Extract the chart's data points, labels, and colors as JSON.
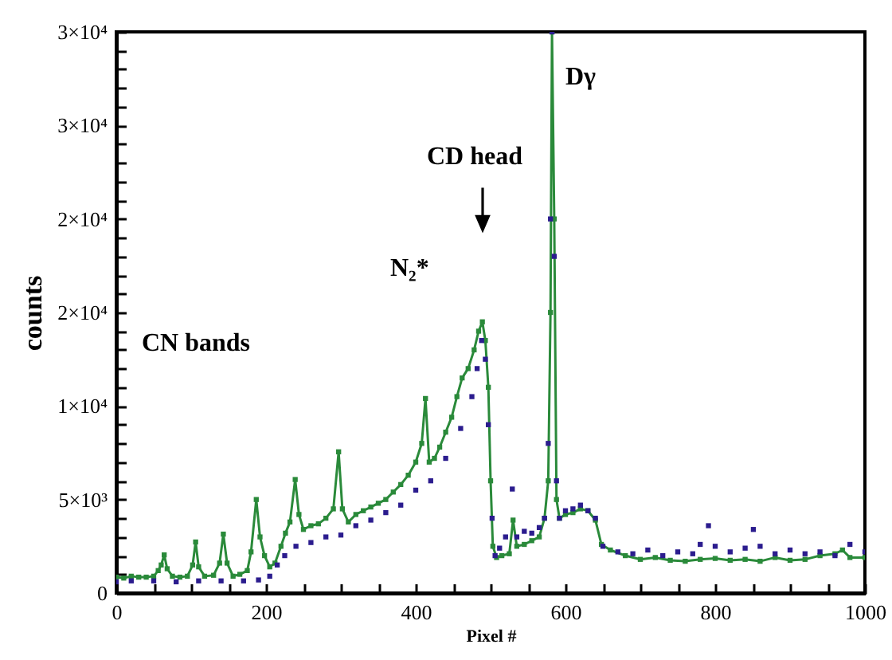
{
  "chart_data": {
    "type": "line",
    "xlabel": "Pixel #",
    "ylabel": "counts",
    "marker": "square",
    "xlim": [
      0,
      1000
    ],
    "ylim": [
      0,
      30000
    ],
    "xticks": [
      0,
      {
        "value": 50,
        "label": null
      },
      200,
      {
        "value": 100,
        "label": null
      },
      {
        "value": 150,
        "label": null
      },
      {
        "value": 250,
        "label": null
      },
      {
        "value": 300,
        "label": null
      },
      {
        "value": 350,
        "label": null
      },
      400,
      {
        "value": 450,
        "label": null
      },
      {
        "value": 500,
        "label": null
      },
      {
        "value": 550,
        "label": null
      },
      600,
      {
        "value": 650,
        "label": null
      },
      {
        "value": 700,
        "label": null
      },
      {
        "value": 750,
        "label": null
      },
      800,
      {
        "value": 850,
        "label": null
      },
      {
        "value": 900,
        "label": null
      },
      {
        "value": 950,
        "label": null
      },
      1000
    ],
    "yticks": [
      0,
      {
        "value": 1000,
        "label": null
      },
      {
        "value": 2000,
        "label": null
      },
      {
        "value": 3000,
        "label": null
      },
      {
        "value": 4000,
        "label": null
      },
      {
        "value": 5000,
        "label": "5×10³"
      },
      {
        "value": 6000,
        "label": null
      },
      {
        "value": 7000,
        "label": null
      },
      {
        "value": 8000,
        "label": null
      },
      {
        "value": 9000,
        "label": null
      },
      {
        "value": 10000,
        "label": "1×10⁴"
      },
      {
        "value": 11000,
        "label": null
      },
      {
        "value": 12000,
        "label": null
      },
      {
        "value": 13000,
        "label": null
      },
      {
        "value": 14000,
        "label": null
      },
      {
        "value": 15000,
        "label": "2×10⁴"
      },
      {
        "value": 16000,
        "label": null
      },
      {
        "value": 17000,
        "label": null
      },
      {
        "value": 18000,
        "label": null
      },
      {
        "value": 19000,
        "label": null
      },
      {
        "value": 20000,
        "label": "2×10⁴"
      },
      {
        "value": 21000,
        "label": null
      },
      {
        "value": 22000,
        "label": null
      },
      {
        "value": 23000,
        "label": null
      },
      {
        "value": 24000,
        "label": null
      },
      {
        "value": 25000,
        "label": "3×10⁴"
      },
      {
        "value": 26000,
        "label": null
      },
      {
        "value": 27000,
        "label": null
      },
      {
        "value": 28000,
        "label": null
      },
      {
        "value": 29000,
        "label": null
      },
      {
        "value": 30000,
        "label": "3×10⁴"
      }
    ],
    "annotations": [
      "CN bands",
      "N₂*",
      "CD head",
      "Dγ"
    ],
    "series": [
      {
        "color": "#2a8a3a",
        "x": [
          0,
          10,
          20,
          30,
          40,
          50,
          56,
          60,
          64,
          68,
          75,
          85,
          95,
          102,
          106,
          110,
          118,
          130,
          138,
          143,
          148,
          156,
          165,
          175,
          180,
          187,
          192,
          198,
          205,
          212,
          220,
          226,
          232,
          239,
          244,
          250,
          260,
          270,
          280,
          290,
          297,
          302,
          310,
          320,
          330,
          340,
          350,
          360,
          370,
          380,
          390,
          400,
          408,
          413,
          418,
          425,
          432,
          440,
          448,
          455,
          462,
          470,
          478,
          484,
          489,
          493,
          497,
          500,
          503,
          508,
          515,
          525,
          530,
          535,
          545,
          555,
          565,
          572,
          577,
          580,
          582,
          585,
          588,
          592,
          600,
          610,
          620,
          630,
          640,
          648,
          660,
          680,
          700,
          720,
          740,
          760,
          780,
          800,
          820,
          840,
          860,
          880,
          900,
          920,
          940,
          960,
          970,
          980,
          1000
        ],
        "values": [
          850,
          800,
          900,
          850,
          850,
          900,
          1200,
          1500,
          2040,
          1300,
          900,
          850,
          900,
          1500,
          2730,
          1400,
          900,
          950,
          1600,
          3150,
          1600,
          900,
          1000,
          1200,
          2200,
          5000,
          3000,
          2000,
          1400,
          1600,
          2500,
          3200,
          3800,
          6070,
          4200,
          3400,
          3600,
          3700,
          4000,
          4500,
          7550,
          4500,
          3800,
          4200,
          4400,
          4600,
          4800,
          5000,
          5400,
          5800,
          6300,
          7000,
          8000,
          10400,
          7000,
          7200,
          7800,
          8600,
          9400,
          10500,
          11500,
          12000,
          13000,
          14000,
          14500,
          13500,
          11000,
          6000,
          2500,
          1900,
          2000,
          2100,
          3900,
          2500,
          2600,
          2800,
          3000,
          4000,
          6000,
          15000,
          30000,
          20000,
          5000,
          4000,
          4200,
          4300,
          4500,
          4400,
          3900,
          2600,
          2300,
          2000,
          1800,
          1900,
          1750,
          1700,
          1800,
          1850,
          1750,
          1800,
          1700,
          1900,
          1750,
          1800,
          2000,
          2100,
          2300,
          1900,
          1900
        ]
      },
      {
        "type": "scatter",
        "color": "#2b1c8e",
        "x": [
          0,
          20,
          50,
          80,
          110,
          140,
          170,
          190,
          205,
          215,
          225,
          240,
          260,
          280,
          300,
          320,
          340,
          360,
          380,
          400,
          420,
          440,
          460,
          475,
          482,
          488,
          493,
          497,
          502,
          506,
          512,
          520,
          529,
          535,
          545,
          555,
          565,
          572,
          577,
          580,
          582,
          585,
          588,
          592,
          600,
          610,
          620,
          630,
          640,
          650,
          670,
          690,
          710,
          730,
          750,
          770,
          780,
          791,
          800,
          820,
          840,
          851,
          860,
          880,
          900,
          920,
          940,
          960,
          980,
          1000
        ],
        "values": [
          600,
          650,
          650,
          600,
          650,
          650,
          650,
          700,
          900,
          1500,
          2000,
          2500,
          2700,
          3000,
          3100,
          3600,
          3900,
          4300,
          4700,
          5500,
          6000,
          7200,
          8800,
          10500,
          12000,
          13500,
          12500,
          9000,
          4000,
          2000,
          2400,
          3000,
          5560,
          3000,
          3300,
          3200,
          3500,
          4000,
          8000,
          20000,
          30000,
          18000,
          6000,
          4000,
          4400,
          4500,
          4700,
          4400,
          4000,
          2500,
          2200,
          2100,
          2300,
          2000,
          2200,
          2100,
          2600,
          3600,
          2500,
          2200,
          2400,
          3400,
          2500,
          2100,
          2300,
          2100,
          2200,
          2000,
          2600,
          2200
        ]
      }
    ]
  }
}
